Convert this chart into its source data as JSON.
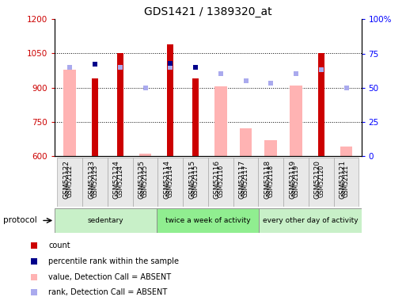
{
  "title": "GDS1421 / 1389320_at",
  "samples": [
    "GSM52122",
    "GSM52123",
    "GSM52124",
    "GSM52125",
    "GSM52114",
    "GSM52115",
    "GSM52116",
    "GSM52117",
    "GSM52118",
    "GSM52119",
    "GSM52120",
    "GSM52121"
  ],
  "count_values": [
    null,
    940,
    1050,
    null,
    1090,
    940,
    null,
    null,
    null,
    null,
    1050,
    null
  ],
  "count_absent_values": [
    980,
    null,
    null,
    610,
    null,
    null,
    905,
    720,
    670,
    910,
    null,
    640
  ],
  "rank_values": [
    null,
    67,
    null,
    null,
    68,
    65,
    null,
    null,
    null,
    null,
    null,
    null
  ],
  "rank_absent_values": [
    65,
    null,
    65,
    50,
    65,
    null,
    60,
    55,
    53,
    60,
    63,
    50
  ],
  "ylim_left": [
    600,
    1200
  ],
  "ylim_right": [
    0,
    100
  ],
  "yticks_left": [
    600,
    750,
    900,
    1050,
    1200
  ],
  "yticks_right": [
    0,
    25,
    50,
    75,
    100
  ],
  "groups": [
    {
      "label": "sedentary",
      "start": 0,
      "end": 4,
      "color": "#c8f0c8"
    },
    {
      "label": "twice a week of activity",
      "start": 4,
      "end": 8,
      "color": "#90ee90"
    },
    {
      "label": "every other day of activity",
      "start": 8,
      "end": 12,
      "color": "#c8f0c8"
    }
  ],
  "protocol_label": "protocol",
  "count_color": "#cc0000",
  "count_absent_color": "#ffb3b3",
  "rank_color": "#00008b",
  "rank_absent_color": "#aaaaee",
  "legend_items": [
    {
      "label": "count",
      "color": "#cc0000",
      "marker": "s"
    },
    {
      "label": "percentile rank within the sample",
      "color": "#00008b",
      "marker": "s"
    },
    {
      "label": "value, Detection Call = ABSENT",
      "color": "#ffb3b3",
      "marker": "s"
    },
    {
      "label": "rank, Detection Call = ABSENT",
      "color": "#aaaaee",
      "marker": "s"
    }
  ]
}
